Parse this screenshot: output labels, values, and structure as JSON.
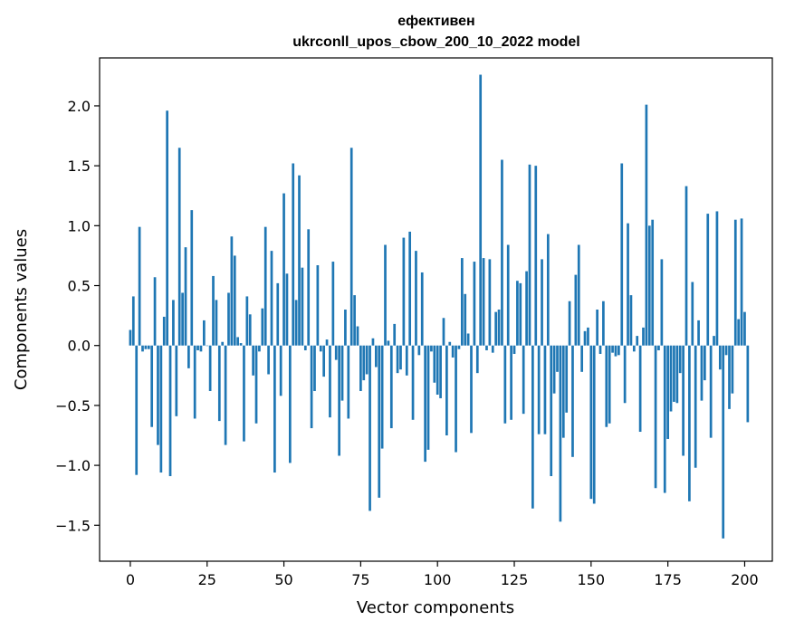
{
  "chart_data": {
    "type": "bar",
    "title_line1": "ефективен",
    "title_line2": "ukrconll_upos_cbow_200_10_2022 model",
    "xlabel": "Vector components",
    "ylabel": "Components values",
    "xlim": [
      -10,
      209
    ],
    "ylim": [
      -1.8,
      2.4
    ],
    "xticks": [
      0,
      25,
      50,
      75,
      100,
      125,
      150,
      175,
      200
    ],
    "yticks": [
      -1.5,
      -1.0,
      -0.5,
      0.0,
      0.5,
      1.0,
      1.5,
      2.0
    ],
    "ytick_labels": [
      "−1.5",
      "−1.0",
      "−0.5",
      "0.0",
      "0.5",
      "1.0",
      "1.5",
      "2.0"
    ],
    "bar_color": "#1f77b4",
    "values": [
      0.13,
      0.41,
      -1.08,
      0.99,
      -0.05,
      -0.03,
      -0.03,
      -0.68,
      0.57,
      -0.83,
      -1.06,
      0.24,
      1.96,
      -1.09,
      0.38,
      -0.59,
      1.65,
      0.44,
      0.82,
      -0.19,
      1.13,
      -0.61,
      -0.04,
      -0.05,
      0.21,
      0.0,
      -0.38,
      0.58,
      0.38,
      -0.63,
      0.03,
      -0.83,
      0.44,
      0.91,
      0.75,
      0.07,
      0.02,
      -0.8,
      0.41,
      0.26,
      -0.25,
      -0.65,
      -0.05,
      0.31,
      0.99,
      -0.24,
      0.79,
      -1.06,
      0.52,
      -0.42,
      1.27,
      0.6,
      -0.98,
      1.52,
      0.38,
      1.42,
      0.65,
      -0.04,
      0.97,
      -0.69,
      -0.38,
      0.67,
      -0.05,
      -0.26,
      0.05,
      -0.6,
      0.7,
      -0.12,
      -0.92,
      -0.46,
      0.3,
      -0.61,
      1.65,
      0.42,
      0.16,
      -0.38,
      -0.29,
      -0.24,
      -1.38,
      0.06,
      -0.18,
      -1.27,
      -0.86,
      0.84,
      0.04,
      -0.69,
      0.18,
      -0.23,
      -0.2,
      0.9,
      -0.25,
      0.95,
      -0.62,
      0.79,
      -0.08,
      0.61,
      -0.97,
      -0.87,
      -0.05,
      -0.31,
      -0.41,
      -0.44,
      0.23,
      -0.75,
      0.03,
      -0.1,
      -0.89,
      -0.03,
      0.73,
      0.43,
      0.1,
      -0.73,
      0.7,
      -0.23,
      2.26,
      0.73,
      -0.04,
      0.72,
      -0.06,
      0.28,
      0.3,
      1.55,
      -0.65,
      0.84,
      -0.62,
      -0.07,
      0.54,
      0.52,
      -0.57,
      0.62,
      1.51,
      -1.36,
      1.5,
      -0.74,
      0.72,
      -0.74,
      0.93,
      -1.09,
      -0.4,
      -0.22,
      -1.47,
      -0.77,
      -0.56,
      0.37,
      -0.93,
      0.59,
      0.84,
      -0.22,
      0.12,
      0.15,
      -1.28,
      -1.32,
      0.3,
      -0.07,
      0.37,
      -0.68,
      -0.65,
      -0.06,
      -0.09,
      -0.08,
      1.52,
      -0.48,
      1.02,
      0.42,
      -0.05,
      0.08,
      -0.72,
      0.15,
      2.01,
      1.0,
      1.05,
      -1.19,
      -0.04,
      0.72,
      -1.23,
      -0.78,
      -0.55,
      -0.47,
      -0.48,
      -0.23,
      -0.92,
      1.33,
      -1.3,
      0.53,
      -1.02,
      0.21,
      -0.46,
      -0.29,
      1.1,
      -0.77,
      0.08,
      1.12,
      -0.2,
      -1.61,
      -0.08,
      -0.53,
      -0.4,
      1.05,
      0.22,
      1.06,
      0.28,
      -0.64
    ]
  }
}
